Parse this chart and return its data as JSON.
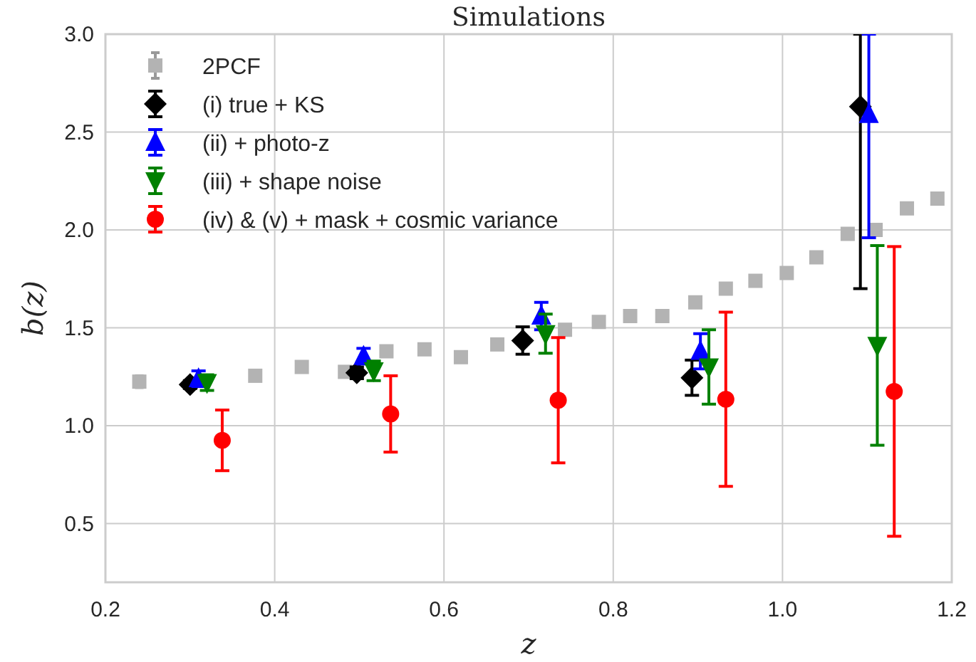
{
  "chart_data": {
    "type": "scatter",
    "title": "Simulations",
    "xlabel": "z",
    "ylabel": "b(z)",
    "xlim": [
      0.2,
      1.2
    ],
    "xticks": [
      0.2,
      0.4,
      0.6,
      0.8,
      {
        "value": 1.0,
        "label": "1.0"
      },
      1.2
    ],
    "ylim": [
      0.2,
      3.0
    ],
    "yticks": [
      0.5,
      {
        "value": 1.0,
        "label": "1.0"
      },
      1.5,
      {
        "value": 2.0,
        "label": "2.0"
      },
      2.5,
      {
        "value": 3.0,
        "label": "3.0"
      }
    ],
    "grid": true,
    "legend": "top left",
    "series": [
      {
        "name": "2PCF",
        "color": "#b3b3b3",
        "marker": "square",
        "x": [
          0.24,
          0.377,
          0.432,
          0.483,
          0.532,
          0.577,
          0.62,
          0.663,
          0.743,
          0.783,
          0.82,
          0.858,
          0.897,
          0.933,
          0.968,
          1.005,
          1.04,
          1.077,
          1.11,
          1.147,
          1.183
        ],
        "values": [
          1.225,
          1.255,
          1.3,
          1.275,
          1.38,
          1.39,
          1.35,
          1.415,
          1.49,
          1.53,
          1.56,
          1.56,
          1.63,
          1.7,
          1.74,
          1.78,
          1.86,
          1.98,
          2.0,
          2.11,
          2.16
        ],
        "errors": [
          0.03,
          0.015,
          0.015,
          0.015,
          0.015,
          0.015,
          0.02,
          0.015,
          0.02,
          0.015,
          0.01,
          0.01,
          0.02,
          0.015,
          0.015,
          0.015,
          0.015,
          0.02,
          0.02,
          0.02,
          0.02
        ]
      },
      {
        "name": "(i) true + KS",
        "color": "#000000",
        "marker": "diamond",
        "x": [
          0.3,
          0.497,
          0.693,
          0.893,
          1.092
        ],
        "values": [
          1.21,
          1.27,
          1.435,
          1.245,
          2.63
        ],
        "errors": [
          0.02,
          0.03,
          0.07,
          0.09,
          [
            1.7,
            3.0
          ]
        ]
      },
      {
        "name": "(ii) + photo-z",
        "color": "#0000ff",
        "marker": "triangle",
        "x": [
          0.31,
          0.505,
          0.715,
          0.903,
          1.102
        ],
        "values": [
          1.24,
          1.355,
          1.56,
          1.38,
          2.59
        ],
        "errors": [
          0.04,
          0.04,
          0.07,
          0.09,
          [
            1.96,
            3.0
          ]
        ]
      },
      {
        "name": "(iii) + shape noise",
        "color": "#008000",
        "marker": "triangle-down",
        "x": [
          0.32,
          0.517,
          0.72,
          0.913,
          1.112
        ],
        "values": [
          1.22,
          1.28,
          1.47,
          1.3,
          1.41
        ],
        "errors": [
          0.04,
          0.05,
          0.1,
          0.19,
          0.51
        ]
      },
      {
        "name": "(iv) & (v) + mask + cosmic variance",
        "color": "#ff0000",
        "marker": "circle",
        "x": [
          0.338,
          0.537,
          0.735,
          0.933,
          1.132
        ],
        "values": [
          0.925,
          1.06,
          1.13,
          1.135,
          1.175
        ],
        "errors": [
          0.155,
          0.195,
          0.32,
          0.445,
          0.74
        ]
      }
    ]
  }
}
